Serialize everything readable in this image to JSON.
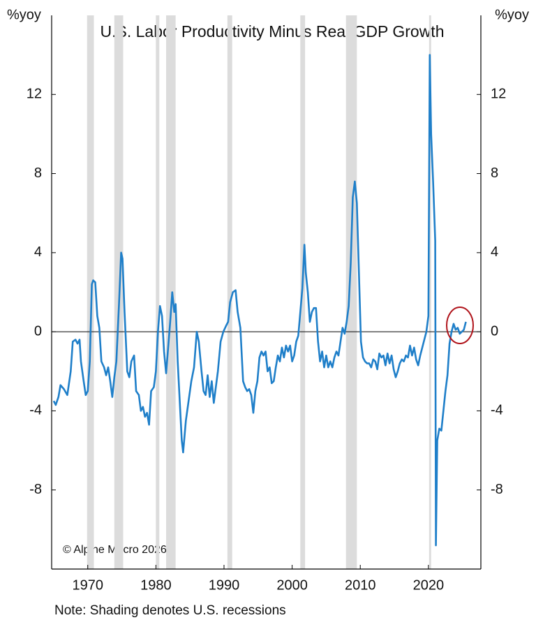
{
  "chart_data": {
    "type": "line",
    "title": "U.S. Labor Productivity Minus Real GDP Growth",
    "y_label": "%yoy",
    "y2_label": "%yoy",
    "source": "© Alpine Macro 2026",
    "note": "Note: Shading denotes U.S. recessions",
    "color": "#1f7fc9",
    "recession_color": "#dcdcdc",
    "recessions": [
      [
        1969.9,
        1970.9
      ],
      [
        1973.9,
        1975.2
      ],
      [
        1980.0,
        1980.5
      ],
      [
        1981.5,
        1982.9
      ],
      [
        1990.5,
        1991.2
      ],
      [
        2001.2,
        2001.9
      ],
      [
        2007.9,
        2009.5
      ],
      [
        2020.1,
        2020.4
      ]
    ],
    "x": [
      1965.0,
      1965.3,
      1965.7,
      1966.0,
      1966.5,
      1967.0,
      1967.5,
      1967.8,
      1968.2,
      1968.5,
      1968.8,
      1969.0,
      1969.4,
      1969.7,
      1970.0,
      1970.3,
      1970.6,
      1970.8,
      1971.1,
      1971.4,
      1971.7,
      1972.0,
      1972.4,
      1972.7,
      1973.0,
      1973.3,
      1973.6,
      1973.9,
      1974.2,
      1974.6,
      1974.9,
      1975.1,
      1975.4,
      1975.8,
      1976.1,
      1976.4,
      1976.8,
      1977.1,
      1977.5,
      1977.8,
      1978.1,
      1978.4,
      1978.7,
      1979.0,
      1979.3,
      1979.7,
      1980.0,
      1980.3,
      1980.6,
      1980.9,
      1981.2,
      1981.5,
      1981.8,
      1982.1,
      1982.4,
      1982.7,
      1982.9,
      1983.2,
      1983.5,
      1983.8,
      1984.0,
      1984.4,
      1984.8,
      1985.2,
      1985.6,
      1986.0,
      1986.3,
      1986.7,
      1987.0,
      1987.3,
      1987.6,
      1987.9,
      1988.2,
      1988.5,
      1988.8,
      1989.1,
      1989.5,
      1989.9,
      1990.3,
      1990.6,
      1990.9,
      1991.3,
      1991.7,
      1992.0,
      1992.4,
      1992.8,
      1993.1,
      1993.4,
      1993.7,
      1994.0,
      1994.3,
      1994.6,
      1994.9,
      1995.2,
      1995.5,
      1995.8,
      1996.1,
      1996.4,
      1996.7,
      1997.0,
      1997.3,
      1997.6,
      1997.9,
      1998.2,
      1998.5,
      1998.8,
      1999.1,
      1999.4,
      1999.7,
      2000.0,
      2000.3,
      2000.6,
      2000.9,
      2001.2,
      2001.5,
      2001.8,
      2002.0,
      2002.3,
      2002.6,
      2002.9,
      2003.2,
      2003.5,
      2003.8,
      2004.1,
      2004.4,
      2004.7,
      2005.0,
      2005.3,
      2005.6,
      2005.9,
      2006.2,
      2006.5,
      2006.8,
      2007.1,
      2007.4,
      2007.7,
      2008.0,
      2008.3,
      2008.6,
      2008.9,
      2009.2,
      2009.5,
      2009.8,
      2010.1,
      2010.4,
      2010.7,
      2011.0,
      2011.3,
      2011.6,
      2011.9,
      2012.2,
      2012.5,
      2012.8,
      2013.1,
      2013.4,
      2013.7,
      2014.0,
      2014.3,
      2014.6,
      2014.9,
      2015.2,
      2015.5,
      2015.8,
      2016.1,
      2016.4,
      2016.7,
      2017.0,
      2017.3,
      2017.6,
      2017.9,
      2018.2,
      2018.5,
      2018.8,
      2019.1,
      2019.4,
      2019.7,
      2020.0,
      2020.2,
      2020.4,
      2020.7,
      2021.0,
      2021.1,
      2021.3,
      2021.6,
      2021.9,
      2022.2,
      2022.5,
      2022.8,
      2023.1,
      2023.4,
      2023.7,
      2024.0,
      2024.3,
      2024.6,
      2024.9,
      2025.2,
      2025.5
    ],
    "values": [
      -3.5,
      -3.7,
      -3.3,
      -2.7,
      -2.9,
      -3.2,
      -2.0,
      -0.5,
      -0.4,
      -0.6,
      -0.4,
      -1.5,
      -2.5,
      -3.2,
      -3.0,
      -1.5,
      2.4,
      2.6,
      2.5,
      0.8,
      0.2,
      -1.5,
      -1.8,
      -2.2,
      -1.8,
      -2.5,
      -3.3,
      -2.3,
      -1.5,
      1.5,
      4.0,
      3.7,
      1.0,
      -2.0,
      -2.3,
      -1.5,
      -1.2,
      -3.0,
      -3.2,
      -4.0,
      -3.8,
      -4.3,
      -4.1,
      -4.7,
      -3.0,
      -2.8,
      -2.0,
      0.0,
      1.3,
      0.8,
      -1.0,
      -2.1,
      -0.8,
      0.5,
      2.0,
      1.0,
      1.4,
      -1.5,
      -3.5,
      -5.5,
      -6.1,
      -4.5,
      -3.5,
      -2.5,
      -1.8,
      0.0,
      -0.5,
      -2.0,
      -3.0,
      -3.2,
      -2.2,
      -3.3,
      -2.5,
      -3.6,
      -2.8,
      -2.0,
      -0.5,
      0.0,
      0.3,
      0.5,
      1.5,
      2.0,
      2.1,
      1.0,
      0.2,
      -2.5,
      -2.8,
      -3.0,
      -2.9,
      -3.2,
      -4.1,
      -3.0,
      -2.5,
      -1.3,
      -1.0,
      -1.2,
      -1.0,
      -2.0,
      -1.8,
      -2.6,
      -2.5,
      -1.8,
      -1.2,
      -1.5,
      -0.8,
      -1.3,
      -0.7,
      -1.0,
      -0.7,
      -1.5,
      -1.2,
      -0.5,
      -0.2,
      1.0,
      2.2,
      4.4,
      3.0,
      2.0,
      0.5,
      1.0,
      1.2,
      1.2,
      -0.5,
      -1.5,
      -1.0,
      -1.8,
      -1.2,
      -1.8,
      -1.5,
      -1.8,
      -1.3,
      -1.0,
      -1.2,
      -0.5,
      0.2,
      -0.1,
      0.5,
      1.3,
      3.5,
      6.8,
      7.6,
      6.5,
      3.0,
      -0.5,
      -1.3,
      -1.5,
      -1.6,
      -1.6,
      -1.8,
      -1.4,
      -1.5,
      -1.9,
      -1.1,
      -1.3,
      -1.2,
      -1.7,
      -1.1,
      -1.6,
      -1.2,
      -1.9,
      -2.3,
      -2.0,
      -1.6,
      -1.4,
      -1.5,
      -1.2,
      -1.3,
      -0.7,
      -1.2,
      -0.8,
      -1.4,
      -1.7,
      -1.2,
      -0.8,
      -0.4,
      0.0,
      0.8,
      14.0,
      10.0,
      7.5,
      4.6,
      -10.8,
      -5.5,
      -4.9,
      -5.0,
      -4.0,
      -3.0,
      -2.2,
      -0.6,
      0.0,
      0.4,
      0.1,
      0.2,
      -0.1,
      0.0,
      0.1,
      0.5
    ],
    "xlim": [
      1964.7,
      2027.7
    ],
    "xticks": [
      1970,
      1980,
      1990,
      2000,
      2010,
      2020
    ],
    "ylim": [
      -12,
      16
    ],
    "yticks": [
      -8,
      -4,
      0,
      4,
      8,
      12
    ],
    "y2lim": [
      -12,
      16
    ],
    "y2ticks": [
      -8,
      -4,
      0,
      4,
      8,
      12
    ]
  }
}
